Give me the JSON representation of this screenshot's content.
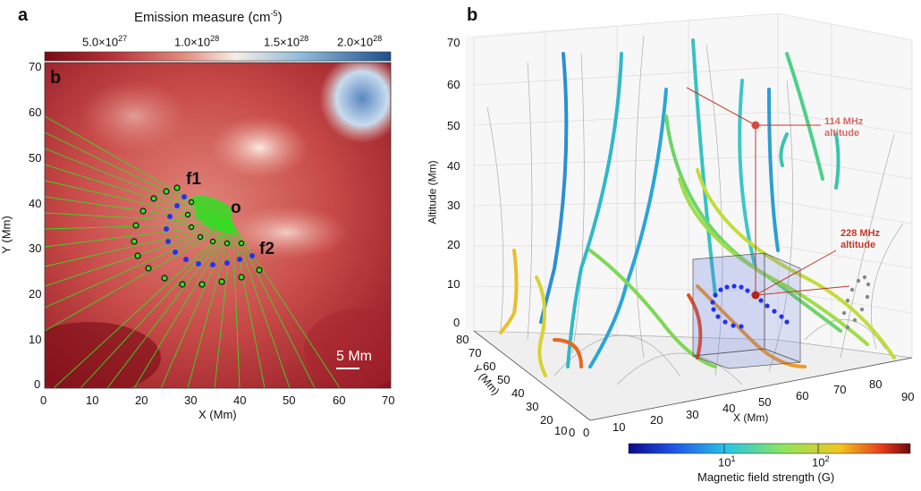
{
  "panel_a": {
    "letter": "a",
    "inner_letter": "b",
    "colorbar": {
      "title": "Emission measure (cm",
      "title_exp": "-5",
      "title_close": ")",
      "ticks": [
        "5.0×10",
        "1.0×10",
        "1.5×10",
        "2.0×10"
      ],
      "tick_exps": [
        "27",
        "28",
        "28",
        "28"
      ],
      "tick_values": [
        5e+27,
        1e+28,
        1.5e+28,
        2e+28
      ]
    },
    "xlabel": "X (Mm)",
    "ylabel": "Y (Mm)",
    "xticks": [
      "0",
      "10",
      "20",
      "30",
      "40",
      "50",
      "60",
      "70"
    ],
    "yticks": [
      "0",
      "10",
      "20",
      "30",
      "40",
      "50",
      "60",
      "70"
    ],
    "labels": {
      "f1": "f1",
      "f2": "f2",
      "o": "o"
    },
    "scale_bar": "5 Mm"
  },
  "panel_b": {
    "letter": "b",
    "zlabel": "Altitude (Mm)",
    "xlabel": "X (Mm)",
    "ylabel": "Y (Mm)",
    "zticks": [
      "0",
      "10",
      "20",
      "30",
      "40",
      "50",
      "60",
      "70"
    ],
    "xticks": [
      "0",
      "10",
      "20",
      "30",
      "40",
      "50",
      "60",
      "70",
      "80",
      "90"
    ],
    "yticks": [
      "0",
      "10",
      "20",
      "30",
      "40",
      "50",
      "60",
      "70",
      "80"
    ],
    "annot_114_line1": "114 MHz",
    "annot_114_line2": "altitude",
    "annot_228_line1": "228 MHz",
    "annot_228_line2": "altitude",
    "colorbar": {
      "label": "Magnetic field strength (G)",
      "tick1": "10",
      "tick1_exp": "1",
      "tick2": "10",
      "tick2_exp": "2"
    }
  },
  "colors": {
    "annotation_red": "#c0392b",
    "field_line_green": "#33dd22",
    "blue_dots": "#2233ee"
  }
}
